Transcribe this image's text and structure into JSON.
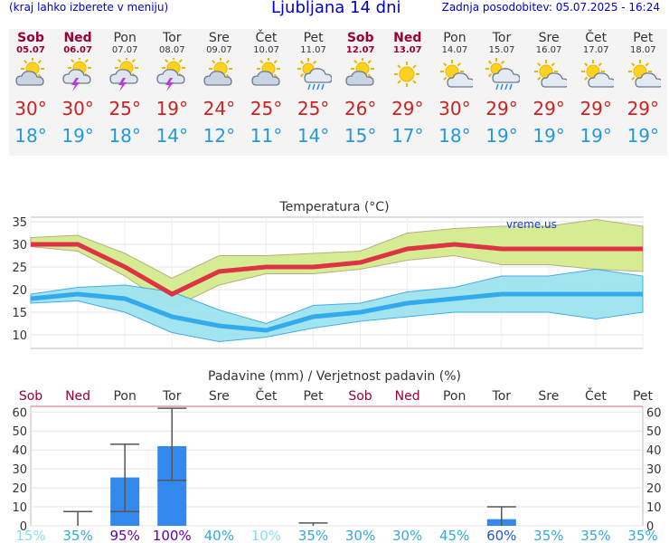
{
  "header": {
    "menu_hint": "(kraj lahko izberete v meniju)",
    "title": "Ljubljana 14 dni",
    "updated": "Zadnja posodobitev: 05.07.2025 - 16:24"
  },
  "days": [
    {
      "name": "Sob",
      "date": "05.07",
      "weekend": true,
      "icon": "partly-cloudy-sun-icon",
      "tmax": "30°",
      "tmin": "18°"
    },
    {
      "name": "Ned",
      "date": "06.07",
      "weekend": true,
      "icon": "sun-thunder-icon",
      "tmax": "30°",
      "tmin": "19°"
    },
    {
      "name": "Pon",
      "date": "07.07",
      "weekend": false,
      "icon": "sun-thunder-icon",
      "tmax": "25°",
      "tmin": "18°"
    },
    {
      "name": "Tor",
      "date": "08.07",
      "weekend": false,
      "icon": "sun-thunder-icon",
      "tmax": "19°",
      "tmin": "14°"
    },
    {
      "name": "Sre",
      "date": "09.07",
      "weekend": false,
      "icon": "partly-cloudy-sun-icon",
      "tmax": "24°",
      "tmin": "12°"
    },
    {
      "name": "Čet",
      "date": "10.07",
      "weekend": false,
      "icon": "partly-cloudy-sun-icon",
      "tmax": "25°",
      "tmin": "11°"
    },
    {
      "name": "Pet",
      "date": "11.07",
      "weekend": false,
      "icon": "sun-rain-icon",
      "tmax": "25°",
      "tmin": "14°"
    },
    {
      "name": "Sob",
      "date": "12.07",
      "weekend": true,
      "icon": "partly-cloudy-sun-icon",
      "tmax": "26°",
      "tmin": "15°"
    },
    {
      "name": "Ned",
      "date": "13.07",
      "weekend": true,
      "icon": "sun-icon",
      "tmax": "29°",
      "tmin": "17°"
    },
    {
      "name": "Pon",
      "date": "14.07",
      "weekend": false,
      "icon": "sun-cloud-icon",
      "tmax": "30°",
      "tmin": "18°"
    },
    {
      "name": "Tor",
      "date": "15.07",
      "weekend": false,
      "icon": "sun-rain-icon",
      "tmax": "29°",
      "tmin": "19°"
    },
    {
      "name": "Sre",
      "date": "16.07",
      "weekend": false,
      "icon": "sun-cloud-icon",
      "tmax": "29°",
      "tmin": "19°"
    },
    {
      "name": "Čet",
      "date": "17.07",
      "weekend": false,
      "icon": "sun-cloud-icon",
      "tmax": "29°",
      "tmin": "19°"
    },
    {
      "name": "Pet",
      "date": "18.07",
      "weekend": false,
      "icon": "sun-cloud-icon",
      "tmax": "29°",
      "tmin": "19°"
    }
  ],
  "chart_data": [
    {
      "type": "line",
      "title": "Temperatura (°C)",
      "watermark": "vreme.us",
      "ylim": [
        7,
        36
      ],
      "yticks": [
        10,
        15,
        20,
        25,
        30,
        35
      ],
      "grid": true,
      "series": [
        {
          "name": "max",
          "color": "#dd3344",
          "values": [
            30,
            30,
            25,
            19,
            24,
            25,
            25,
            26,
            29,
            30,
            29,
            29,
            29,
            29
          ]
        },
        {
          "name": "min",
          "color": "#33aaee",
          "values": [
            18,
            19,
            18,
            14,
            12,
            11,
            14,
            15,
            17,
            18,
            19,
            19,
            19,
            19
          ]
        }
      ],
      "bands": [
        {
          "color": "#d4ec8e",
          "low": [
            29.5,
            28.5,
            23,
            16,
            21,
            23.5,
            23.5,
            24.5,
            26.5,
            27.5,
            25.5,
            25.5,
            24.5,
            24
          ],
          "high": [
            31.5,
            32,
            28,
            22.5,
            27.5,
            27.5,
            28,
            28.5,
            32.5,
            33.5,
            34,
            34,
            35.5,
            34
          ]
        },
        {
          "color": "#9fe4ef",
          "low": [
            17,
            17.5,
            15,
            10.5,
            8.5,
            9.5,
            11.5,
            13,
            14,
            15,
            15,
            15,
            13.5,
            15
          ],
          "high": [
            19,
            20.5,
            21,
            19.5,
            15.5,
            12.5,
            16.5,
            17,
            19.5,
            20.5,
            23,
            23,
            24.5,
            23
          ]
        }
      ]
    },
    {
      "type": "bar",
      "title": "Padavine (mm) / Verjetnost padavin (%)",
      "categories": [
        "Sob",
        "Ned",
        "Pon",
        "Tor",
        "Sre",
        "Čet",
        "Pet",
        "Sob",
        "Ned",
        "Pon",
        "Tor",
        "Sre",
        "Čet",
        "Pet"
      ],
      "weekend": [
        true,
        true,
        false,
        false,
        false,
        false,
        false,
        true,
        true,
        false,
        false,
        false,
        false,
        false
      ],
      "ylim": [
        0,
        63
      ],
      "yticks": [
        0,
        10,
        20,
        30,
        40,
        50,
        60
      ],
      "bar_color": "#3388ee",
      "values": [
        0,
        0,
        25.5,
        42,
        0,
        0,
        0,
        0,
        0,
        0,
        3.5,
        0,
        0,
        0
      ],
      "range_low": [
        null,
        0,
        7.5,
        24,
        null,
        null,
        0,
        null,
        null,
        null,
        0,
        null,
        null,
        null
      ],
      "range_high": [
        null,
        7.5,
        43,
        62,
        null,
        null,
        1.5,
        null,
        null,
        null,
        10,
        null,
        null,
        null
      ],
      "probability": [
        "15%",
        "35%",
        "95%",
        "100%",
        "40%",
        "10%",
        "35%",
        "30%",
        "30%",
        "45%",
        "60%",
        "35%",
        "35%",
        "35%"
      ],
      "probability_colors": [
        "#88ddee",
        "#33aadd",
        "#6600aa",
        "#6600aa",
        "#33aadd",
        "#88ddee",
        "#33aadd",
        "#33aadd",
        "#33aadd",
        "#33aadd",
        "#2255cc",
        "#33aadd",
        "#33aadd",
        "#33aadd"
      ]
    }
  ]
}
